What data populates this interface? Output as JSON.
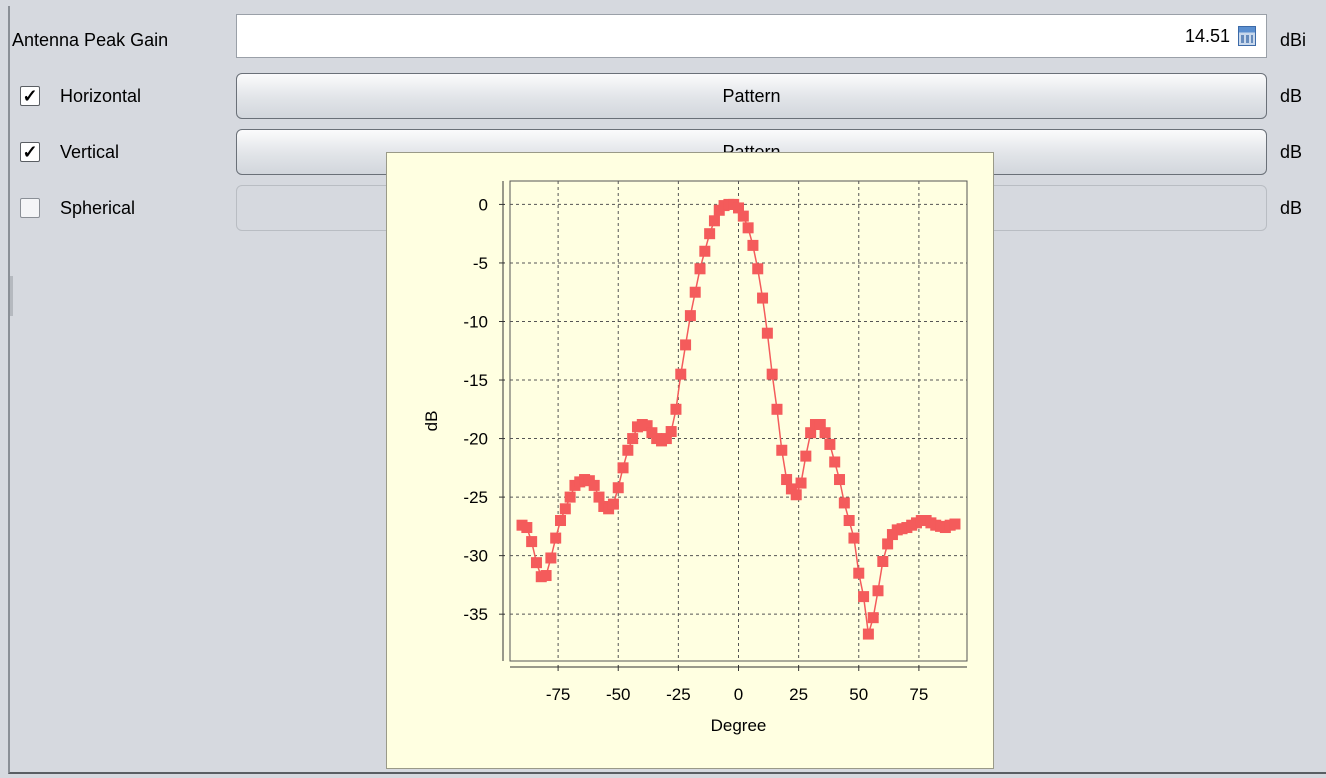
{
  "gain": {
    "label": "Antenna Peak Gain",
    "value": "14.51",
    "unit": "dBi",
    "icon": "calculator-icon"
  },
  "rows": [
    {
      "label": "Horizontal",
      "checked": true,
      "button": "Pattern",
      "unit": "dB",
      "enabled": true
    },
    {
      "label": "Vertical",
      "checked": true,
      "button": "Pattern",
      "unit": "dB",
      "enabled": true
    },
    {
      "label": "Spherical",
      "checked": false,
      "button": "",
      "unit": "dB",
      "enabled": false
    }
  ],
  "chart_data": {
    "type": "scatter",
    "xlabel": "Degree",
    "ylabel": "dB",
    "xlim": [
      -95,
      95
    ],
    "ylim": [
      -39,
      2
    ],
    "xticks": [
      -75,
      -50,
      -25,
      0,
      25,
      50,
      75
    ],
    "yticks": [
      0,
      -5,
      -10,
      -15,
      -20,
      -25,
      -30,
      -35
    ],
    "grid": true,
    "color": "#f45b5b",
    "series": [
      {
        "x": [
          -90,
          -88,
          -86,
          -84,
          -82,
          -80,
          -78,
          -76,
          -74,
          -72,
          -70,
          -68,
          -66,
          -64,
          -62,
          -60,
          -58,
          -56,
          -54,
          -52,
          -50,
          -48,
          -46,
          -44,
          -42,
          -40,
          -38,
          -36,
          -34,
          -32,
          -30,
          -28,
          -26,
          -24,
          -22,
          -20,
          -18,
          -16,
          -14,
          -12,
          -10,
          -8,
          -6,
          -4,
          -2,
          0,
          2,
          4,
          6,
          8,
          10,
          12,
          14,
          16,
          18,
          20,
          22,
          24,
          26,
          28,
          30,
          32,
          34,
          36,
          38,
          40,
          42,
          44,
          46,
          48,
          50,
          52,
          54,
          56,
          58,
          60,
          62,
          64,
          66,
          68,
          70,
          72,
          74,
          76,
          78,
          80,
          82,
          84,
          86,
          88,
          90
        ],
        "y": [
          -27.4,
          -27.6,
          -28.8,
          -30.6,
          -31.8,
          -31.7,
          -30.2,
          -28.5,
          -27,
          -26,
          -25,
          -24,
          -23.7,
          -23.5,
          -23.6,
          -24,
          -25,
          -25.8,
          -26,
          -25.6,
          -24.2,
          -22.5,
          -21,
          -20,
          -19,
          -18.8,
          -18.9,
          -19.5,
          -20,
          -20.2,
          -20,
          -19.4,
          -17.5,
          -14.5,
          -12,
          -9.5,
          -7.5,
          -5.5,
          -4,
          -2.5,
          -1.4,
          -0.5,
          -0.1,
          0,
          0,
          -0.3,
          -1,
          -2,
          -3.5,
          -5.5,
          -8,
          -11,
          -14.5,
          -17.5,
          -21,
          -23.5,
          -24.3,
          -24.8,
          -23.8,
          -21.5,
          -19.5,
          -18.8,
          -18.8,
          -19.5,
          -20.5,
          -22,
          -23.5,
          -25.5,
          -27,
          -28.5,
          -31.5,
          -33.5,
          -36.7,
          -35.3,
          -33,
          -30.5,
          -29,
          -28.2,
          -27.8,
          -27.7,
          -27.6,
          -27.4,
          -27.2,
          -27,
          -27,
          -27.2,
          -27.4,
          -27.5,
          -27.6,
          -27.4,
          -27.3
        ]
      }
    ]
  }
}
